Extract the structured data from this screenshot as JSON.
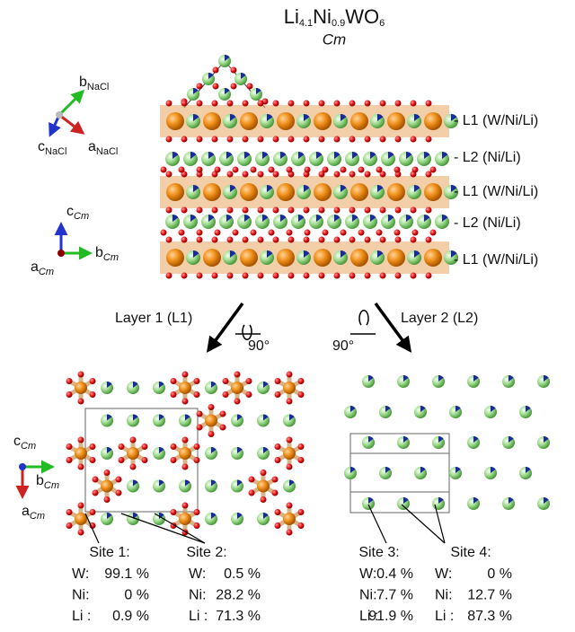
{
  "title": {
    "formula": [
      "Li",
      "4.1",
      "Ni",
      "0.9",
      "WO",
      "6"
    ],
    "space_group": "Cm"
  },
  "axes_nacl": {
    "b": {
      "main": "b",
      "sub": "NaCl"
    },
    "c": {
      "main": "c",
      "sub": "NaCl"
    },
    "a": {
      "main": "a",
      "sub": "NaCl"
    }
  },
  "axes_cm": {
    "c": {
      "main": "c",
      "sub": "Cm"
    },
    "b": {
      "main": "b",
      "sub": "Cm"
    },
    "a": {
      "main": "a",
      "sub": "Cm"
    }
  },
  "axes_cm_bottom": {
    "c": {
      "main": "c",
      "sub": "Cm"
    },
    "b": {
      "main": "b",
      "sub": "Cm"
    },
    "a": {
      "main": "a",
      "sub": "Cm"
    }
  },
  "layers": [
    "- L1 (W/Ni/Li)",
    "- L2 (Ni/Li)",
    "- L1 (W/Ni/Li)",
    "- L2 (Ni/Li)",
    "- L1 (W/Ni/Li)"
  ],
  "views": [
    {
      "label": "Layer 1 (L1)",
      "rotation": "90°"
    },
    {
      "label": "Layer 2 (L2)",
      "rotation": "90°"
    }
  ],
  "sites": [
    {
      "title": "Site 1:",
      "rows": [
        [
          "W:",
          "99.1 %"
        ],
        [
          "Ni:",
          "0 %"
        ],
        [
          "Li :",
          "0.9 %"
        ]
      ]
    },
    {
      "title": "Site 2:",
      "rows": [
        [
          "W:",
          "0.5 %"
        ],
        [
          "Ni:",
          "28.2 %"
        ],
        [
          "Li :",
          "71.3 %"
        ]
      ]
    },
    {
      "title": "Site 3:",
      "rows": [
        [
          "W:",
          "0.4 %"
        ],
        [
          "Ni:",
          "7.7 %"
        ],
        [
          "Li :",
          "91.9 %"
        ]
      ]
    },
    {
      "title": "Site 4:",
      "rows": [
        [
          "W:",
          "0 %"
        ],
        [
          "Ni:",
          "12.7 %"
        ],
        [
          "Li :",
          "87.3 %"
        ]
      ]
    }
  ]
}
